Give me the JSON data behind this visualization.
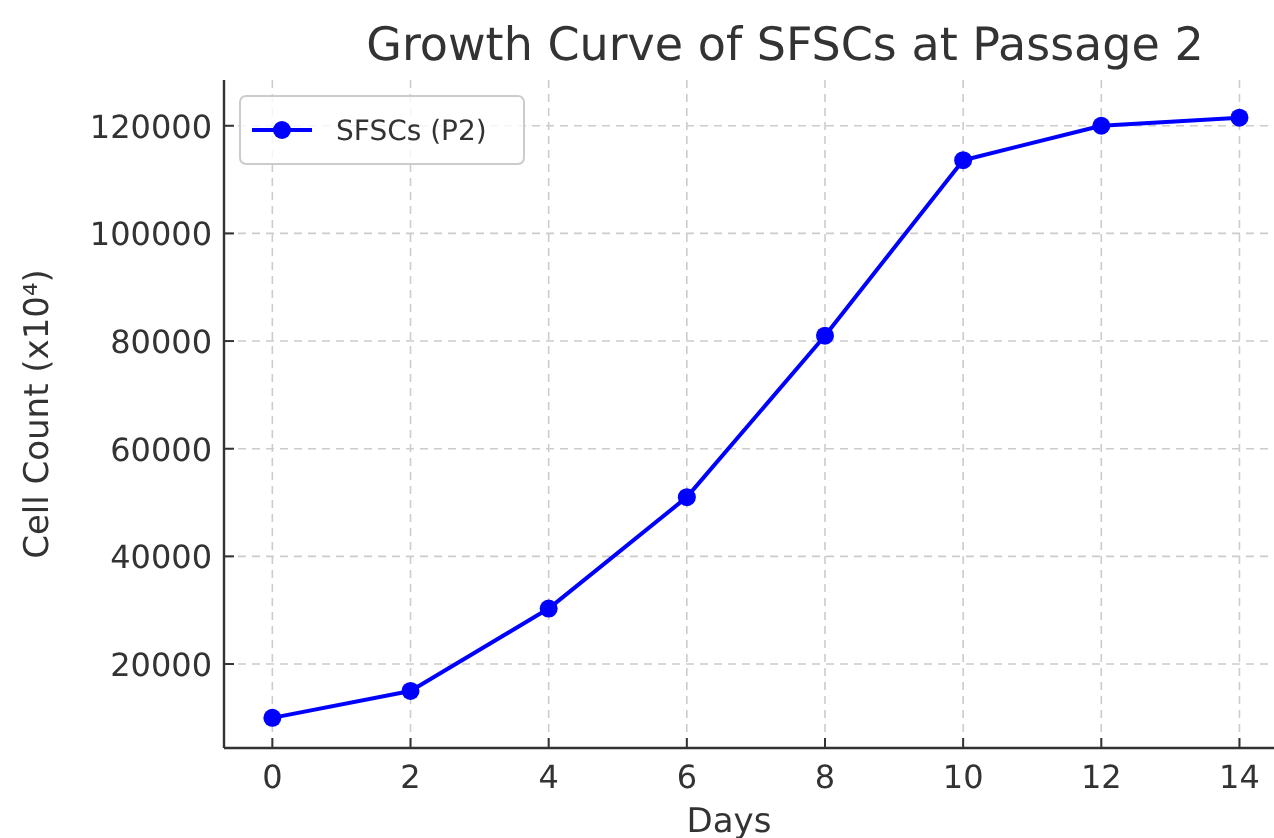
{
  "chart_data": {
    "type": "line",
    "title": "Growth Curve of SFSCs at Passage 2",
    "xlabel": "Days",
    "ylabel": "Cell Count (x10⁴)",
    "x": [
      0,
      2,
      4,
      6,
      8,
      10,
      12,
      14
    ],
    "series": [
      {
        "name": "SFSCs (P2)",
        "color": "#0000ff",
        "values": [
          10000,
          15000,
          30300,
          51000,
          81000,
          113600,
          120000,
          121500
        ]
      }
    ],
    "xlim": [
      -0.7,
      14.5
    ],
    "ylim": [
      4400,
      128500
    ],
    "xticks": [
      0,
      2,
      4,
      6,
      8,
      10,
      12,
      14
    ],
    "yticks": [
      20000,
      40000,
      60000,
      80000,
      100000,
      120000
    ],
    "grid": true,
    "legend": "top left",
    "marker": "circle",
    "line_style": "solid"
  }
}
